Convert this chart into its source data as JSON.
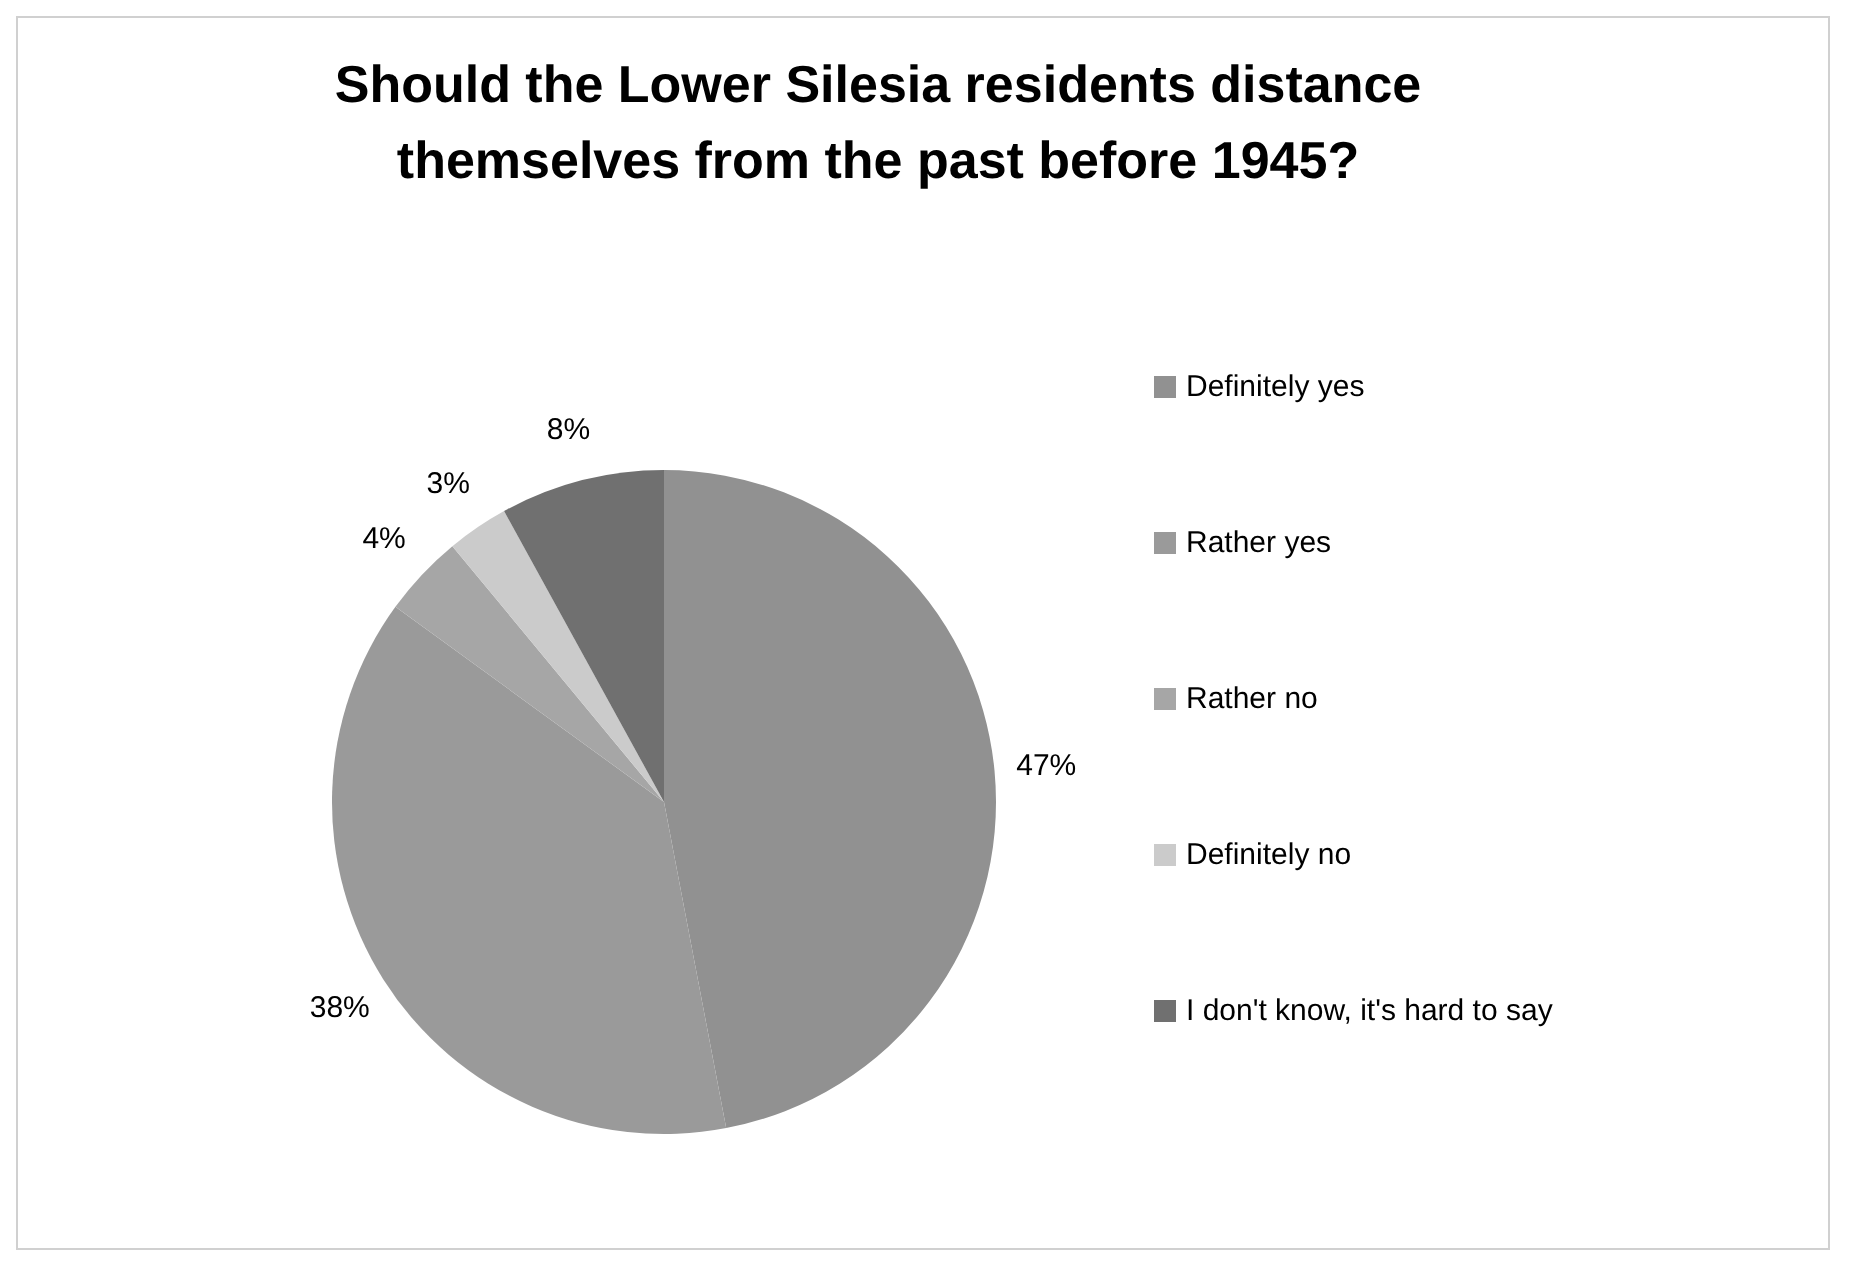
{
  "chart_data": {
    "type": "pie",
    "title": "Should the Lower Silesia residents distance themselves from the past before 1945?",
    "categories": [
      "Definitely yes",
      "Rather yes",
      "Rather no",
      "Definitely no",
      "I don't know, it's hard to say"
    ],
    "values": [
      47,
      38,
      4,
      3,
      8
    ],
    "colors": [
      "#919191",
      "#9a9a9a",
      "#a6a6a6",
      "#cbcbcb",
      "#707070"
    ],
    "value_labels": [
      "47%",
      "38%",
      "4%",
      "3%",
      "8%"
    ],
    "legend": "right"
  }
}
